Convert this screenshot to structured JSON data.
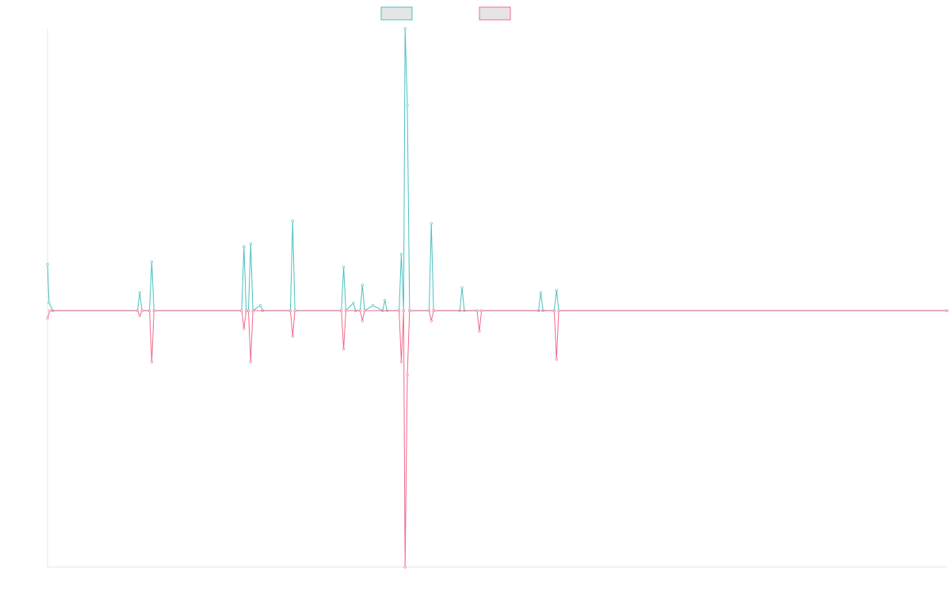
{
  "chart_data": {
    "type": "line",
    "title": "",
    "xlabel": "",
    "ylabel": "",
    "grid": false,
    "legend_position": "top-center",
    "ylim": [
      -1.0,
      1.1
    ],
    "xlim": [
      0,
      1200
    ],
    "series": [
      {
        "color": "#4bc0c0",
        "points": [
          [
            0,
            0.18
          ],
          [
            2,
            0.03
          ],
          [
            7,
            0
          ],
          [
            120,
            0
          ],
          [
            123,
            0.07
          ],
          [
            126,
            0
          ],
          [
            136,
            0
          ],
          [
            139,
            0.19
          ],
          [
            142,
            0
          ],
          [
            259,
            0
          ],
          [
            262,
            0.25
          ],
          [
            265,
            0
          ],
          [
            268,
            0
          ],
          [
            271,
            0.26
          ],
          [
            274,
            0
          ],
          [
            284,
            0.02
          ],
          [
            287,
            0
          ],
          [
            324,
            0
          ],
          [
            327,
            0.35
          ],
          [
            330,
            0
          ],
          [
            392,
            0
          ],
          [
            395,
            0.17
          ],
          [
            398,
            0
          ],
          [
            408,
            0.03
          ],
          [
            411,
            0
          ],
          [
            417,
            0
          ],
          [
            420,
            0.1
          ],
          [
            423,
            0
          ],
          [
            434,
            0.02
          ],
          [
            447,
            0
          ],
          [
            450,
            0.04
          ],
          [
            453,
            0
          ],
          [
            469,
            0
          ],
          [
            472,
            0.22
          ],
          [
            475,
            0
          ],
          [
            477,
            1.1
          ],
          [
            480,
            0.8
          ],
          [
            483,
            0
          ],
          [
            509,
            0
          ],
          [
            512,
            0.34
          ],
          [
            515,
            0
          ],
          [
            550,
            0
          ],
          [
            553,
            0.09
          ],
          [
            556,
            0
          ],
          [
            655,
            0
          ],
          [
            658,
            0.07
          ],
          [
            661,
            0
          ],
          [
            676,
            0
          ],
          [
            679,
            0.08
          ],
          [
            682,
            0
          ],
          [
            1200,
            0
          ]
        ]
      },
      {
        "color": "#f06a8a",
        "points": [
          [
            0,
            -0.03
          ],
          [
            3,
            0
          ],
          [
            120,
            0
          ],
          [
            123,
            -0.02
          ],
          [
            126,
            0
          ],
          [
            136,
            0
          ],
          [
            139,
            -0.2
          ],
          [
            142,
            0
          ],
          [
            259,
            0
          ],
          [
            262,
            -0.07
          ],
          [
            265,
            0
          ],
          [
            268,
            0
          ],
          [
            271,
            -0.2
          ],
          [
            274,
            0
          ],
          [
            324,
            0
          ],
          [
            327,
            -0.1
          ],
          [
            330,
            0
          ],
          [
            392,
            0
          ],
          [
            395,
            -0.15
          ],
          [
            398,
            0
          ],
          [
            417,
            0
          ],
          [
            420,
            -0.04
          ],
          [
            423,
            0
          ],
          [
            469,
            0
          ],
          [
            472,
            -0.2
          ],
          [
            475,
            0
          ],
          [
            477,
            -1.0
          ],
          [
            480,
            -0.25
          ],
          [
            483,
            0
          ],
          [
            509,
            0
          ],
          [
            512,
            -0.04
          ],
          [
            515,
            0
          ],
          [
            573,
            0
          ],
          [
            576,
            -0.08
          ],
          [
            579,
            0
          ],
          [
            676,
            0
          ],
          [
            679,
            -0.19
          ],
          [
            682,
            0
          ],
          [
            1200,
            0
          ]
        ]
      }
    ]
  }
}
